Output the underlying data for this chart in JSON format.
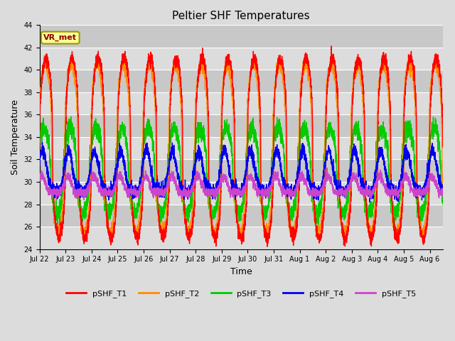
{
  "title": "Peltier SHF Temperatures",
  "xlabel": "Time",
  "ylabel": "Soil Temperature",
  "ylim": [
    24,
    44
  ],
  "yticks": [
    24,
    26,
    28,
    30,
    32,
    34,
    36,
    38,
    40,
    42,
    44
  ],
  "annotation": "VR_met",
  "annotation_color": "#8B0000",
  "annotation_bg": "#FFFF99",
  "bg_color": "#DCDCDC",
  "plot_bg": "#DCDCDC",
  "colors": {
    "pSHF_T1": "#FF0000",
    "pSHF_T2": "#FF8C00",
    "pSHF_T3": "#00CC00",
    "pSHF_T4": "#0000EE",
    "pSHF_T5": "#CC44CC"
  },
  "num_days": 15.5,
  "period_hours": 24,
  "tick_labels": [
    "Jul 22",
    "Jul 23",
    "Jul 24",
    "Jul 25",
    "Jul 26",
    "Jul 27",
    "Jul 28",
    "Jul 29",
    "Jul 30",
    "Jul 31",
    "Aug 1",
    "Aug 2",
    "Aug 3",
    "Aug 4",
    "Aug 5",
    "Aug 6"
  ],
  "tick_positions": [
    0,
    1,
    2,
    3,
    4,
    5,
    6,
    7,
    8,
    9,
    10,
    11,
    12,
    13,
    14,
    15
  ],
  "linewidth": 1.0,
  "title_fontsize": 11,
  "axis_label_fontsize": 9,
  "tick_fontsize": 7,
  "legend_fontsize": 8,
  "grid_color": "#FFFFFF",
  "grid_linewidth": 1.0,
  "band_colors": [
    "#DCDCDC",
    "#C8C8C8"
  ]
}
